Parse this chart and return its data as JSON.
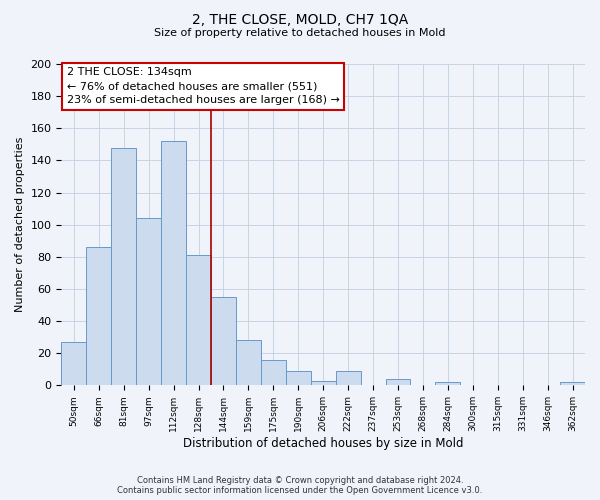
{
  "title": "2, THE CLOSE, MOLD, CH7 1QA",
  "subtitle": "Size of property relative to detached houses in Mold",
  "xlabel": "Distribution of detached houses by size in Mold",
  "ylabel": "Number of detached properties",
  "bar_labels": [
    "50sqm",
    "66sqm",
    "81sqm",
    "97sqm",
    "112sqm",
    "128sqm",
    "144sqm",
    "159sqm",
    "175sqm",
    "190sqm",
    "206sqm",
    "222sqm",
    "237sqm",
    "253sqm",
    "268sqm",
    "284sqm",
    "300sqm",
    "315sqm",
    "331sqm",
    "346sqm",
    "362sqm"
  ],
  "bar_values": [
    27,
    86,
    148,
    104,
    152,
    81,
    55,
    28,
    16,
    9,
    3,
    9,
    0,
    4,
    0,
    2,
    0,
    0,
    0,
    0,
    2
  ],
  "bar_color": "#ccdcee",
  "bar_edge_color": "#6699cc",
  "vline_x": 5.5,
  "vline_color": "#aa0000",
  "annotation_line1": "2 THE CLOSE: 134sqm",
  "annotation_line2": "← 76% of detached houses are smaller (551)",
  "annotation_line3": "23% of semi-detached houses are larger (168) →",
  "annotation_box_color": "#ffffff",
  "annotation_box_edge": "#cc0000",
  "ylim": [
    0,
    200
  ],
  "yticks": [
    0,
    20,
    40,
    60,
    80,
    100,
    120,
    140,
    160,
    180,
    200
  ],
  "footer_line1": "Contains HM Land Registry data © Crown copyright and database right 2024.",
  "footer_line2": "Contains public sector information licensed under the Open Government Licence v3.0.",
  "grid_color": "#c8d4e4",
  "background_color": "#f0f4fa"
}
